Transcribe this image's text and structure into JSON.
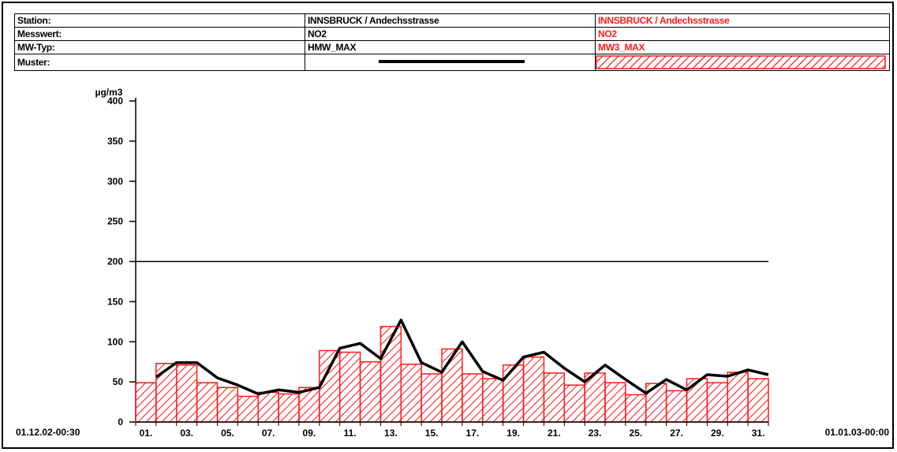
{
  "info_table": {
    "rows": [
      {
        "label": "Station:",
        "series1": "INNSBRUCK / Andechsstrasse",
        "series2": "INNSBRUCK / Andechsstrasse"
      },
      {
        "label": "Messwert:",
        "series1": "NO2",
        "series2": "NO2"
      },
      {
        "label": "MW-Typ:",
        "series1": "HMW_MAX",
        "series2": "MW3_MAX"
      },
      {
        "label": "Muster:",
        "series1": "",
        "series2": ""
      }
    ]
  },
  "colors": {
    "series1": "#000000",
    "series2": "#ff1a1a"
  },
  "time_range": {
    "start": "01.12.02-00:30",
    "end": "01.01.03-00:00"
  },
  "chart_data": {
    "type": "bar",
    "ylabel": "µg/m3",
    "ylim": [
      0,
      400
    ],
    "yticks": [
      0,
      50,
      100,
      150,
      200,
      250,
      300,
      350,
      400
    ],
    "reference_line": 200,
    "x": [
      "01.",
      "02.",
      "03.",
      "04.",
      "05.",
      "06.",
      "07.",
      "08.",
      "09.",
      "10.",
      "11.",
      "12.",
      "13.",
      "14.",
      "15.",
      "16.",
      "17.",
      "18.",
      "19.",
      "20.",
      "21.",
      "22.",
      "23.",
      "24.",
      "25.",
      "26.",
      "27.",
      "28.",
      "29.",
      "30.",
      "31."
    ],
    "xtick_labels": [
      "01.",
      "03.",
      "05.",
      "07.",
      "09.",
      "11.",
      "13.",
      "15.",
      "17.",
      "19.",
      "21.",
      "23.",
      "25.",
      "27.",
      "29.",
      "31."
    ],
    "series": [
      {
        "name": "HMW_MAX",
        "type": "line",
        "values": [
          56,
          74,
          74,
          55,
          46,
          35,
          40,
          37,
          43,
          92,
          98,
          79,
          127,
          74,
          62,
          100,
          63,
          52,
          81,
          87,
          67,
          50,
          71,
          53,
          36,
          53,
          40,
          59,
          57,
          65,
          59
        ]
      },
      {
        "name": "MW3_MAX",
        "type": "bar",
        "values": [
          49,
          73,
          71,
          49,
          43,
          32,
          37,
          35,
          43,
          89,
          87,
          75,
          119,
          72,
          60,
          91,
          60,
          54,
          71,
          81,
          61,
          46,
          61,
          49,
          34,
          48,
          39,
          54,
          49,
          62,
          54
        ]
      }
    ]
  }
}
